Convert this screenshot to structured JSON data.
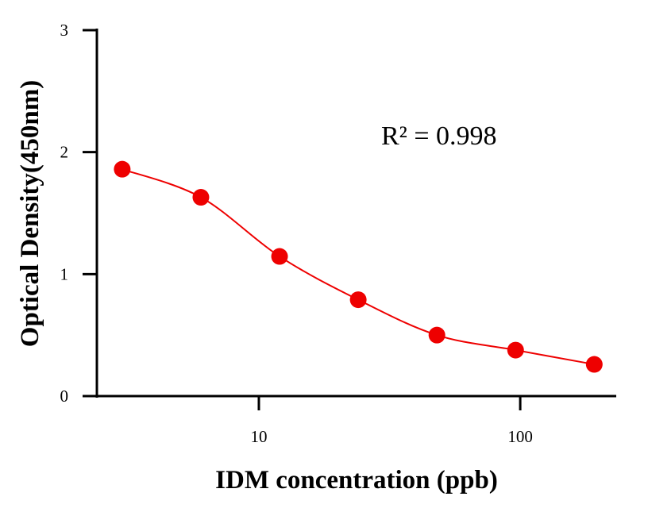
{
  "chart_data": {
    "type": "scatter",
    "title": "",
    "xlabel": "IDM concentration (ppb)",
    "ylabel": "Optical Density(450nm)",
    "xscale": "log",
    "xlim": [
      2.4,
      233
    ],
    "ylim": [
      0,
      3
    ],
    "xticks": [
      10,
      100
    ],
    "xtick_labels": [
      "10",
      "100"
    ],
    "yticks": [
      0,
      1,
      2,
      3
    ],
    "ytick_labels": [
      "0",
      "1",
      "2",
      "3"
    ],
    "grid": false,
    "annotation": "R² = 0.998",
    "series": [
      {
        "x": [
          3,
          6,
          12,
          24,
          48,
          96,
          192
        ],
        "y": [
          1.86,
          1.63,
          1.145,
          0.79,
          0.5,
          0.377,
          0.26
        ],
        "color": "#ee0000",
        "marker": "circle",
        "fit_line": true
      }
    ]
  }
}
